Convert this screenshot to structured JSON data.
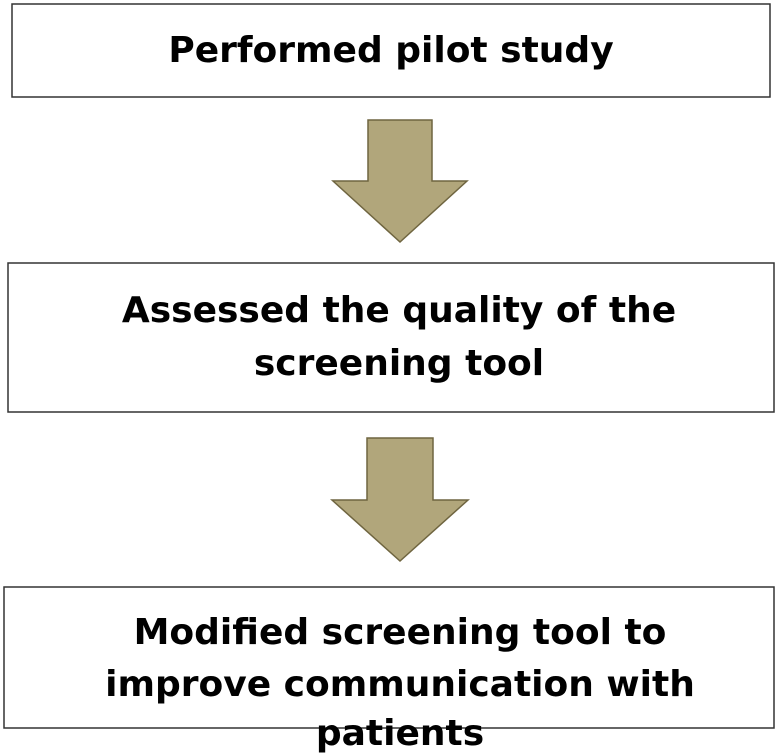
{
  "nodes": [
    {
      "lines": [
        "Performed pilot study"
      ]
    },
    {
      "lines": [
        "Assessed the quality of the",
        "screening tool"
      ]
    },
    {
      "lines": [
        "Modified screening tool to",
        "improve communication with",
        "patients"
      ]
    }
  ]
}
